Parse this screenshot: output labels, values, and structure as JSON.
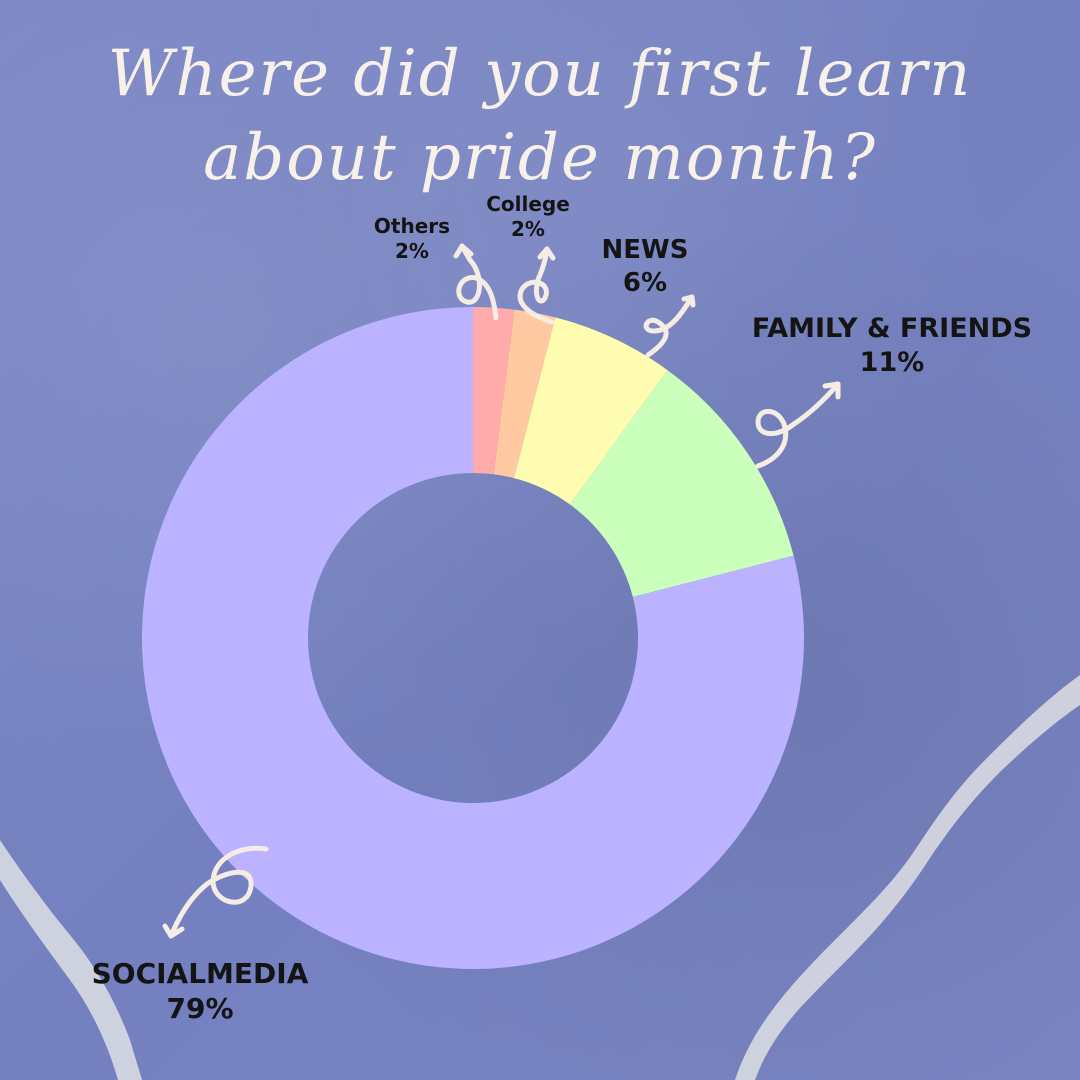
{
  "chart_data": {
    "type": "pie",
    "title": "Where did you first learn about pride month?",
    "title_lines": [
      "Where did you first learn",
      "about pride month?"
    ],
    "donut": true,
    "categories": [
      "Others",
      "College",
      "NEWS",
      "FAMILY & FRIENDS",
      "SOCIALMEDIA"
    ],
    "values": [
      2,
      2,
      6,
      11,
      79
    ],
    "value_labels": [
      "2%",
      "2%",
      "6%",
      "11%",
      "79%"
    ],
    "colors": [
      "#ffabab",
      "#ffc9a2",
      "#fdfcb0",
      "#cbffbc",
      "#bbb3ff"
    ],
    "legend": "none"
  },
  "colors": {
    "background": "#7b86c4",
    "title_text": "#f7f1ea",
    "label_text": "#141414",
    "arrow": "#f5ece4",
    "torn_strip": "#d3d5df"
  },
  "icons": [
    "curly-arrow-icon"
  ]
}
